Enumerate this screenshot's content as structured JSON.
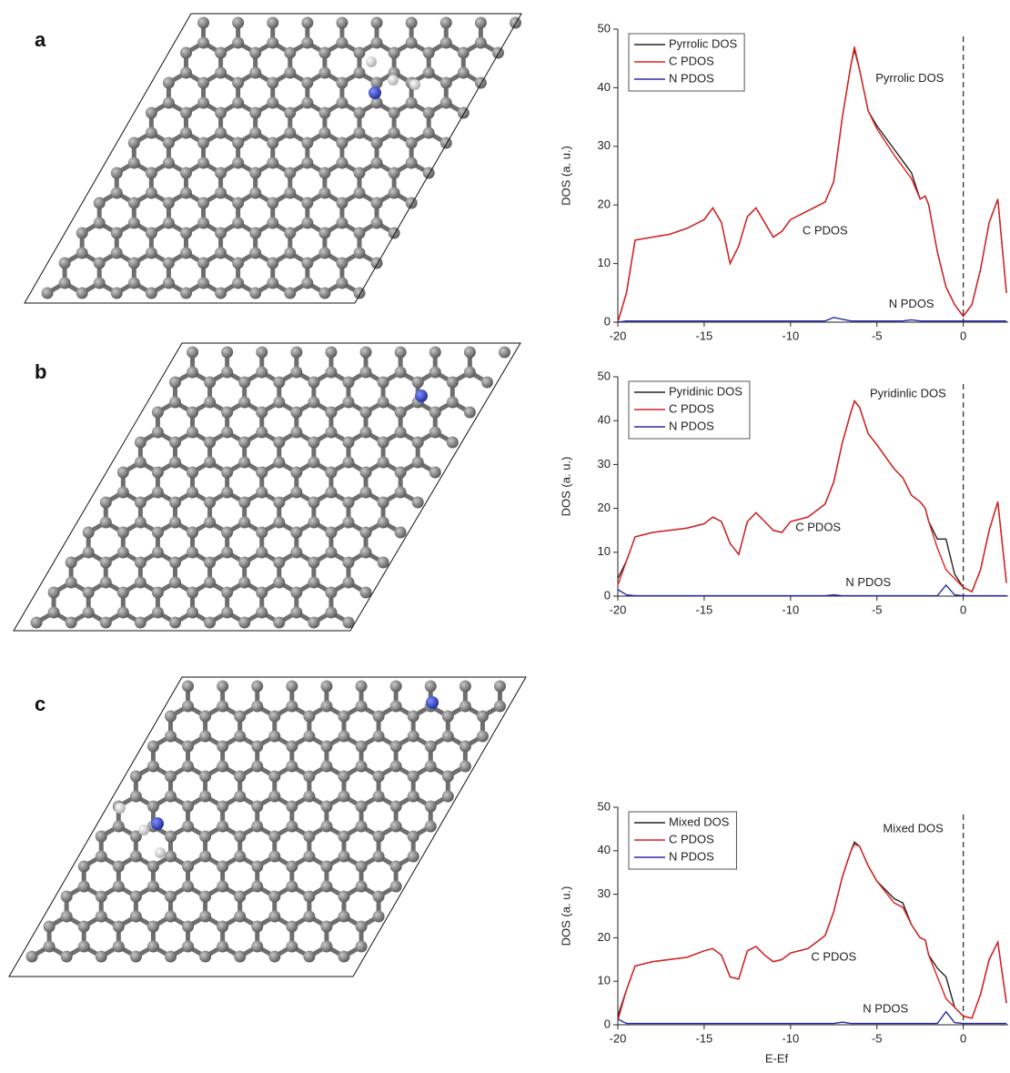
{
  "chart_data": [
    {
      "type": "line",
      "panel_label": "a",
      "ylabel": "DOS (a. u.)",
      "legend": "upper left",
      "x": [
        -20,
        -19.5,
        -19,
        -18,
        -17,
        -16,
        -15,
        -14.5,
        -14,
        -13.5,
        -13,
        -12.5,
        -12,
        -11.5,
        -11,
        -10.5,
        -10,
        -9,
        -8,
        -7.5,
        -7,
        -6.5,
        -6.3,
        -6,
        -5.5,
        -5,
        -4,
        -3.5,
        -3,
        -2.5,
        -2.2,
        -2,
        -1.5,
        -1,
        -0.5,
        0,
        0.5,
        1,
        1.5,
        2,
        2.5
      ],
      "series": [
        {
          "name": "Pyrrolic DOS",
          "color": "#222222",
          "values": [
            0,
            5,
            14,
            14.5,
            15,
            16,
            17.5,
            19.5,
            17,
            10,
            13,
            18,
            19.5,
            17,
            14.5,
            15.5,
            17.5,
            19,
            20.5,
            24,
            35,
            44,
            46.5,
            43,
            36,
            33.5,
            29.5,
            27.5,
            25.5,
            21,
            21.5,
            20,
            12,
            6,
            3,
            1,
            3,
            9,
            17,
            21,
            5
          ]
        },
        {
          "name": "C PDOS",
          "color": "#e02020",
          "values": [
            0,
            5,
            14,
            14.5,
            15,
            16,
            17.5,
            19.5,
            17,
            10,
            13,
            18,
            19.5,
            17,
            14.5,
            15.5,
            17.5,
            19,
            20.5,
            24,
            35,
            44,
            47,
            43,
            36,
            33,
            28.5,
            26.5,
            24.5,
            21,
            21.5,
            20,
            12,
            6,
            3,
            1,
            3,
            9,
            17,
            21,
            5
          ]
        },
        {
          "name": "N PDOS",
          "color": "#2a2aa8",
          "values": [
            0,
            0.2,
            0.2,
            0.2,
            0.2,
            0.2,
            0.2,
            0.2,
            0.2,
            0.2,
            0.2,
            0.2,
            0.2,
            0.2,
            0.2,
            0.2,
            0.2,
            0.2,
            0.2,
            0.8,
            0.5,
            0.2,
            0.2,
            0.2,
            0.2,
            0.2,
            0.2,
            0.2,
            0.4,
            0.2,
            0.2,
            0.2,
            0.2,
            0.2,
            0.2,
            0.2,
            0.2,
            0.2,
            0.2,
            0.2,
            0.2
          ]
        }
      ],
      "annotations": [
        "Pyrrolic DOS",
        "C PDOS",
        "N PDOS"
      ],
      "vline": 0,
      "xlim": [
        -20,
        2.6
      ],
      "xticks": [
        -20,
        -15,
        -10,
        -5,
        0
      ],
      "ylim": [
        0,
        50
      ],
      "yticks": [
        0,
        10,
        20,
        30,
        40,
        50
      ]
    },
    {
      "type": "line",
      "panel_label": "b",
      "ylabel": "DOS (a. u.)",
      "legend": "upper left",
      "x": [
        -20,
        -19.5,
        -19,
        -18,
        -17,
        -16,
        -15,
        -14.5,
        -14,
        -13.5,
        -13,
        -12.5,
        -12,
        -11.5,
        -11,
        -10.5,
        -10,
        -9,
        -8,
        -7.5,
        -7,
        -6.5,
        -6.3,
        -6,
        -5.5,
        -5,
        -4,
        -3.5,
        -3,
        -2.5,
        -2.2,
        -2,
        -1.5,
        -1,
        -0.5,
        0,
        0.5,
        1,
        1.5,
        2,
        2.5
      ],
      "series": [
        {
          "name": "Pyridinic DOS",
          "color": "#222222",
          "values": [
            4,
            8,
            13.5,
            14.5,
            15,
            15.5,
            16.5,
            18,
            17,
            12,
            9.5,
            17,
            19,
            17,
            15,
            14.5,
            17,
            18,
            21,
            26,
            35,
            42,
            44.5,
            43,
            37,
            34.5,
            29,
            27,
            23,
            21.5,
            20,
            17,
            13,
            13,
            5,
            2,
            1,
            6,
            15,
            21.5,
            3
          ]
        },
        {
          "name": "C PDOS",
          "color": "#e02020",
          "values": [
            2.5,
            8,
            13.5,
            14.5,
            15,
            15.5,
            16.5,
            18,
            17,
            12,
            9.5,
            17,
            19,
            17,
            15,
            14.5,
            17,
            18,
            21,
            26,
            35,
            42,
            44.5,
            43,
            37,
            34.5,
            29,
            27,
            23,
            21.5,
            20,
            17,
            11,
            6,
            4,
            2,
            1,
            6,
            15,
            21.5,
            3
          ]
        },
        {
          "name": "N PDOS",
          "color": "#2a2aa8",
          "values": [
            1.5,
            0.3,
            0.1,
            0.1,
            0.1,
            0.1,
            0.1,
            0.1,
            0.1,
            0.1,
            0.1,
            0.1,
            0.1,
            0.1,
            0.1,
            0.1,
            0.1,
            0.1,
            0.1,
            0.3,
            0.1,
            0.1,
            0.1,
            0.1,
            0.1,
            0.1,
            0.1,
            0.1,
            0.1,
            0.1,
            0.1,
            0.1,
            0.1,
            2.5,
            0.3,
            0.1,
            0.1,
            0.1,
            0.1,
            0.1,
            0.1
          ]
        }
      ],
      "annotations": [
        "Pyridinlic DOS",
        "C PDOS",
        "N PDOS"
      ],
      "vline": 0,
      "xlim": [
        -20,
        2.6
      ],
      "xticks": [
        -20,
        -15,
        -10,
        -5,
        0
      ],
      "ylim": [
        0,
        50
      ],
      "yticks": [
        0,
        10,
        20,
        30,
        40,
        50
      ]
    },
    {
      "type": "line",
      "panel_label": "c",
      "ylabel": "DOS (a. u.)",
      "xlabel": "E-Ef",
      "legend": "upper left",
      "x": [
        -20,
        -19.5,
        -19,
        -18,
        -17,
        -16,
        -15,
        -14.5,
        -14,
        -13.5,
        -13,
        -12.5,
        -12,
        -11.5,
        -11,
        -10.5,
        -10,
        -9,
        -8,
        -7.5,
        -7,
        -6.5,
        -6.3,
        -6,
        -5.5,
        -5,
        -4,
        -3.5,
        -3,
        -2.5,
        -2.2,
        -2,
        -1.5,
        -1,
        -0.5,
        0,
        0.5,
        1,
        1.5,
        2,
        2.5
      ],
      "series": [
        {
          "name": "Mixed DOS",
          "color": "#222222",
          "values": [
            2,
            8,
            13.5,
            14.5,
            15,
            15.5,
            17,
            17.5,
            16,
            11,
            10.5,
            17,
            18,
            16,
            14.5,
            15,
            16.5,
            17.5,
            20.5,
            26,
            34,
            40,
            42,
            41,
            36.5,
            33,
            29,
            28,
            23,
            20,
            19.5,
            16,
            13,
            11,
            4,
            2,
            1.5,
            7,
            15,
            19,
            5
          ]
        },
        {
          "name": "C PDOS",
          "color": "#e02020",
          "values": [
            1,
            8,
            13.5,
            14.5,
            15,
            15.5,
            17,
            17.5,
            16,
            11,
            10.5,
            17,
            18,
            16,
            14.5,
            15,
            16.5,
            17.5,
            20.5,
            26,
            34,
            40,
            41.5,
            41,
            36.5,
            33,
            28,
            27,
            23,
            20,
            19.5,
            16,
            11,
            6,
            4,
            2,
            1.5,
            7,
            15,
            19,
            5
          ]
        },
        {
          "name": "N PDOS",
          "color": "#2a2aa8",
          "values": [
            1.3,
            0.3,
            0.3,
            0.3,
            0.3,
            0.3,
            0.3,
            0.3,
            0.3,
            0.3,
            0.3,
            0.3,
            0.3,
            0.3,
            0.3,
            0.3,
            0.3,
            0.3,
            0.3,
            0.3,
            0.6,
            0.3,
            0.3,
            0.3,
            0.3,
            0.3,
            0.3,
            0.3,
            0.3,
            0.3,
            0.3,
            0.3,
            0.3,
            3,
            0.5,
            0.3,
            0.3,
            0.3,
            0.3,
            0.3,
            0.3
          ]
        }
      ],
      "annotations": [
        "Mixed DOS",
        "C PDOS",
        "N PDOS"
      ],
      "vline": 0,
      "xlim": [
        -20,
        2.6
      ],
      "xticks": [
        -20,
        -15,
        -10,
        -5,
        0
      ],
      "ylim": [
        0,
        50
      ],
      "yticks": [
        0,
        10,
        20,
        30,
        40,
        50
      ]
    }
  ]
}
